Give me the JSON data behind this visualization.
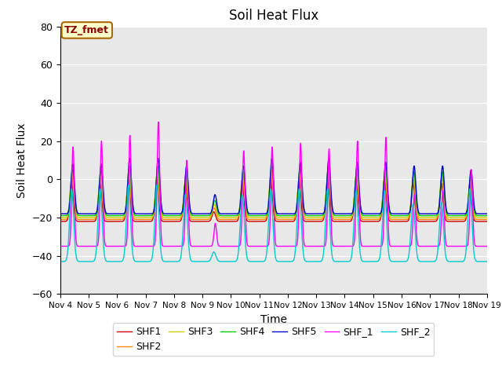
{
  "title": "Soil Heat Flux",
  "xlabel": "Time",
  "ylabel": "Soil Heat Flux",
  "ylim": [
    -60,
    80
  ],
  "xlim": [
    0,
    15
  ],
  "x_tick_labels": [
    "Nov 4",
    "Nov 5",
    "Nov 6",
    "Nov 7",
    "Nov 8",
    "Nov 9",
    "Nov 10",
    "Nov 11",
    "Nov 12",
    "Nov 13",
    "Nov 14",
    "Nov 15",
    "Nov 16",
    "Nov 17",
    "Nov 18",
    "Nov 19"
  ],
  "x_tick_positions": [
    0,
    1,
    2,
    3,
    4,
    5,
    6,
    7,
    8,
    9,
    10,
    11,
    12,
    13,
    14,
    15
  ],
  "y_ticks": [
    -60,
    -40,
    -20,
    0,
    20,
    40,
    60,
    80
  ],
  "series": [
    {
      "name": "SHF1",
      "color": "#cc0000"
    },
    {
      "name": "SHF2",
      "color": "#ff8800"
    },
    {
      "name": "SHF3",
      "color": "#cccc00"
    },
    {
      "name": "SHF4",
      "color": "#00cc00"
    },
    {
      "name": "SHF5",
      "color": "#0000cc"
    },
    {
      "name": "SHF_1",
      "color": "#ff00ff"
    },
    {
      "name": "SHF_2",
      "color": "#00cccc"
    }
  ],
  "annotation_text": "TZ_fmet",
  "bg_color": "#e8e8e8",
  "title_fontsize": 12,
  "legend_fontsize": 9
}
